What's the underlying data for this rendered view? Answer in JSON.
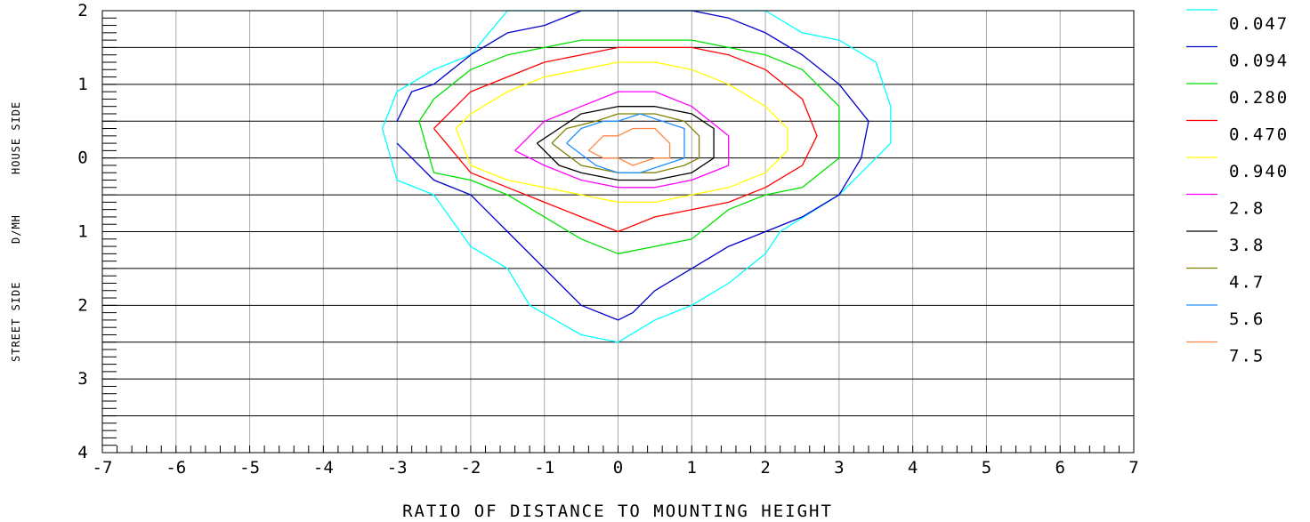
{
  "chart_data": {
    "type": "contour",
    "xlabel": "RATIO OF DISTANCE TO MOUNTING HEIGHT",
    "ylabel_parts": [
      "STREET SIDE",
      "D/MH",
      "HOUSE SIDE"
    ],
    "xlim": [
      -7,
      7
    ],
    "ylim": [
      -4,
      2
    ],
    "x_ticks": [
      -7,
      -6,
      -5,
      -4,
      -3,
      -2,
      -1,
      0,
      1,
      2,
      3,
      4,
      5,
      6,
      7
    ],
    "x_tick_labels": [
      "-7",
      "-6",
      "-5",
      "-4",
      "-3",
      "-2",
      "-1",
      "0",
      "1",
      "2",
      "3",
      "4",
      "5",
      "6",
      "7"
    ],
    "y_ticks": [
      2,
      1,
      0,
      -1,
      -2,
      -3,
      -4
    ],
    "y_tick_labels": [
      "2",
      "1",
      "0",
      "1",
      "2",
      "3",
      "4"
    ],
    "grid": true,
    "legend_position": "right",
    "series": [
      {
        "name": "0.047",
        "color": "#00ffff",
        "x": [
          -3.2,
          -3.0,
          -2.5,
          -2.0,
          -1.5,
          -1.0,
          -0.5,
          0.0,
          0.5,
          1.0,
          1.5,
          2.0,
          2.5,
          3.0,
          3.5,
          3.7,
          3.7,
          3.5,
          3.0,
          2.2,
          2.0,
          1.5,
          1.0,
          0.5,
          0.0,
          -0.5,
          -1.2,
          -1.5,
          -2.0,
          -2.5,
          -3.0,
          -3.2
        ],
        "y": [
          0.4,
          0.9,
          1.2,
          1.4,
          2.0,
          2.0,
          2.0,
          2.0,
          2.0,
          2.0,
          2.0,
          2.0,
          1.7,
          1.6,
          1.3,
          0.7,
          0.2,
          0.0,
          -0.5,
          -1.0,
          -1.3,
          -1.7,
          -2.0,
          -2.2,
          -2.5,
          -2.4,
          -2.0,
          -1.5,
          -1.2,
          -0.5,
          -0.3,
          0.4
        ]
      },
      {
        "name": "0.094",
        "color": "#0000cc",
        "x": [
          -3.0,
          -2.8,
          -2.5,
          -2.0,
          -1.5,
          -1.0,
          -0.5,
          0.0,
          0.5,
          1.0,
          1.5,
          2.0,
          2.5,
          3.0,
          3.4,
          3.3,
          3.0,
          2.5,
          2.0,
          1.5,
          1.0,
          0.5,
          0.2,
          0.0,
          -0.5,
          -1.0,
          -1.5,
          -2.0,
          -2.5,
          -3.0
        ],
        "y": [
          0.5,
          0.9,
          1.0,
          1.4,
          1.7,
          1.8,
          2.0,
          2.0,
          2.0,
          2.0,
          1.9,
          1.7,
          1.4,
          1.0,
          0.5,
          0.0,
          -0.5,
          -0.8,
          -1.0,
          -1.2,
          -1.5,
          -1.8,
          -2.1,
          -2.2,
          -2.0,
          -1.5,
          -1.0,
          -0.5,
          -0.3,
          0.2
        ]
      },
      {
        "name": "0.280",
        "color": "#00e000",
        "x": [
          -2.7,
          -2.5,
          -2.0,
          -1.5,
          -1.0,
          -0.5,
          0.0,
          0.5,
          1.0,
          1.5,
          2.0,
          2.5,
          3.0,
          3.0,
          2.5,
          2.0,
          1.5,
          1.0,
          0.5,
          0.0,
          -0.5,
          -1.0,
          -1.5,
          -2.0,
          -2.5,
          -2.7
        ],
        "y": [
          0.5,
          0.8,
          1.2,
          1.4,
          1.5,
          1.6,
          1.6,
          1.6,
          1.6,
          1.5,
          1.4,
          1.2,
          0.7,
          0.0,
          -0.4,
          -0.5,
          -0.7,
          -1.1,
          -1.2,
          -1.3,
          -1.1,
          -0.8,
          -0.5,
          -0.3,
          -0.2,
          0.5
        ]
      },
      {
        "name": "0.470",
        "color": "#ff0000",
        "x": [
          -2.5,
          -2.0,
          -1.5,
          -1.0,
          -0.5,
          0.0,
          0.5,
          1.0,
          1.5,
          2.0,
          2.5,
          2.7,
          2.5,
          2.0,
          1.5,
          1.0,
          0.5,
          0.0,
          -0.5,
          -1.0,
          -1.5,
          -2.0,
          -2.5
        ],
        "y": [
          0.4,
          0.9,
          1.1,
          1.3,
          1.4,
          1.5,
          1.5,
          1.5,
          1.4,
          1.2,
          0.8,
          0.3,
          -0.1,
          -0.4,
          -0.6,
          -0.7,
          -0.8,
          -1.0,
          -0.8,
          -0.6,
          -0.4,
          -0.2,
          0.4
        ]
      },
      {
        "name": "0.940",
        "color": "#ffff00",
        "x": [
          -2.2,
          -2.0,
          -1.5,
          -1.0,
          -0.5,
          0.0,
          0.5,
          1.0,
          1.5,
          2.0,
          2.3,
          2.3,
          2.0,
          1.5,
          1.0,
          0.5,
          0.0,
          -0.5,
          -1.0,
          -1.5,
          -2.0,
          -2.2
        ],
        "y": [
          0.4,
          0.6,
          0.9,
          1.1,
          1.2,
          1.3,
          1.3,
          1.2,
          1.0,
          0.7,
          0.4,
          0.1,
          -0.2,
          -0.4,
          -0.5,
          -0.6,
          -0.6,
          -0.5,
          -0.4,
          -0.3,
          -0.1,
          0.4
        ]
      },
      {
        "name": "2.8",
        "color": "#ff00ff",
        "x": [
          -1.4,
          -1.0,
          -0.5,
          0.0,
          0.5,
          1.0,
          1.5,
          1.5,
          1.0,
          0.5,
          0.0,
          -0.5,
          -1.0,
          -1.4
        ],
        "y": [
          0.1,
          0.5,
          0.7,
          0.9,
          0.9,
          0.7,
          0.3,
          -0.1,
          -0.3,
          -0.4,
          -0.4,
          -0.3,
          -0.1,
          0.1
        ]
      },
      {
        "name": "3.8",
        "color": "#000000",
        "x": [
          -1.1,
          -0.8,
          -0.5,
          0.0,
          0.5,
          1.0,
          1.3,
          1.3,
          1.0,
          0.5,
          0.0,
          -0.5,
          -0.8,
          -1.1
        ],
        "y": [
          0.2,
          0.4,
          0.6,
          0.7,
          0.7,
          0.6,
          0.4,
          0.0,
          -0.2,
          -0.3,
          -0.3,
          -0.2,
          -0.1,
          0.2
        ]
      },
      {
        "name": "4.7",
        "color": "#808000",
        "x": [
          -0.9,
          -0.7,
          -0.3,
          0.0,
          0.5,
          0.9,
          1.1,
          1.1,
          0.9,
          0.5,
          0.0,
          -0.5,
          -0.9
        ],
        "y": [
          0.2,
          0.4,
          0.5,
          0.6,
          0.6,
          0.5,
          0.3,
          0.0,
          -0.1,
          -0.2,
          -0.2,
          -0.1,
          0.2
        ]
      },
      {
        "name": "5.6",
        "color": "#1e90ff",
        "x": [
          -0.7,
          -0.5,
          -0.2,
          0.0,
          0.3,
          0.6,
          0.9,
          0.9,
          0.6,
          0.3,
          0.0,
          -0.3,
          -0.7
        ],
        "y": [
          0.2,
          0.4,
          0.5,
          0.5,
          0.6,
          0.5,
          0.4,
          0.0,
          -0.1,
          -0.2,
          -0.2,
          -0.1,
          0.2
        ]
      },
      {
        "name": "7.5",
        "color": "#ff8844",
        "x": [
          -0.4,
          -0.2,
          0.0,
          0.2,
          0.5,
          0.7,
          0.7,
          0.5,
          0.2,
          0.0,
          -0.2,
          -0.4
        ],
        "y": [
          0.1,
          0.3,
          0.3,
          0.4,
          0.4,
          0.2,
          0.0,
          0.0,
          -0.1,
          0.0,
          0.0,
          0.1
        ]
      }
    ]
  }
}
